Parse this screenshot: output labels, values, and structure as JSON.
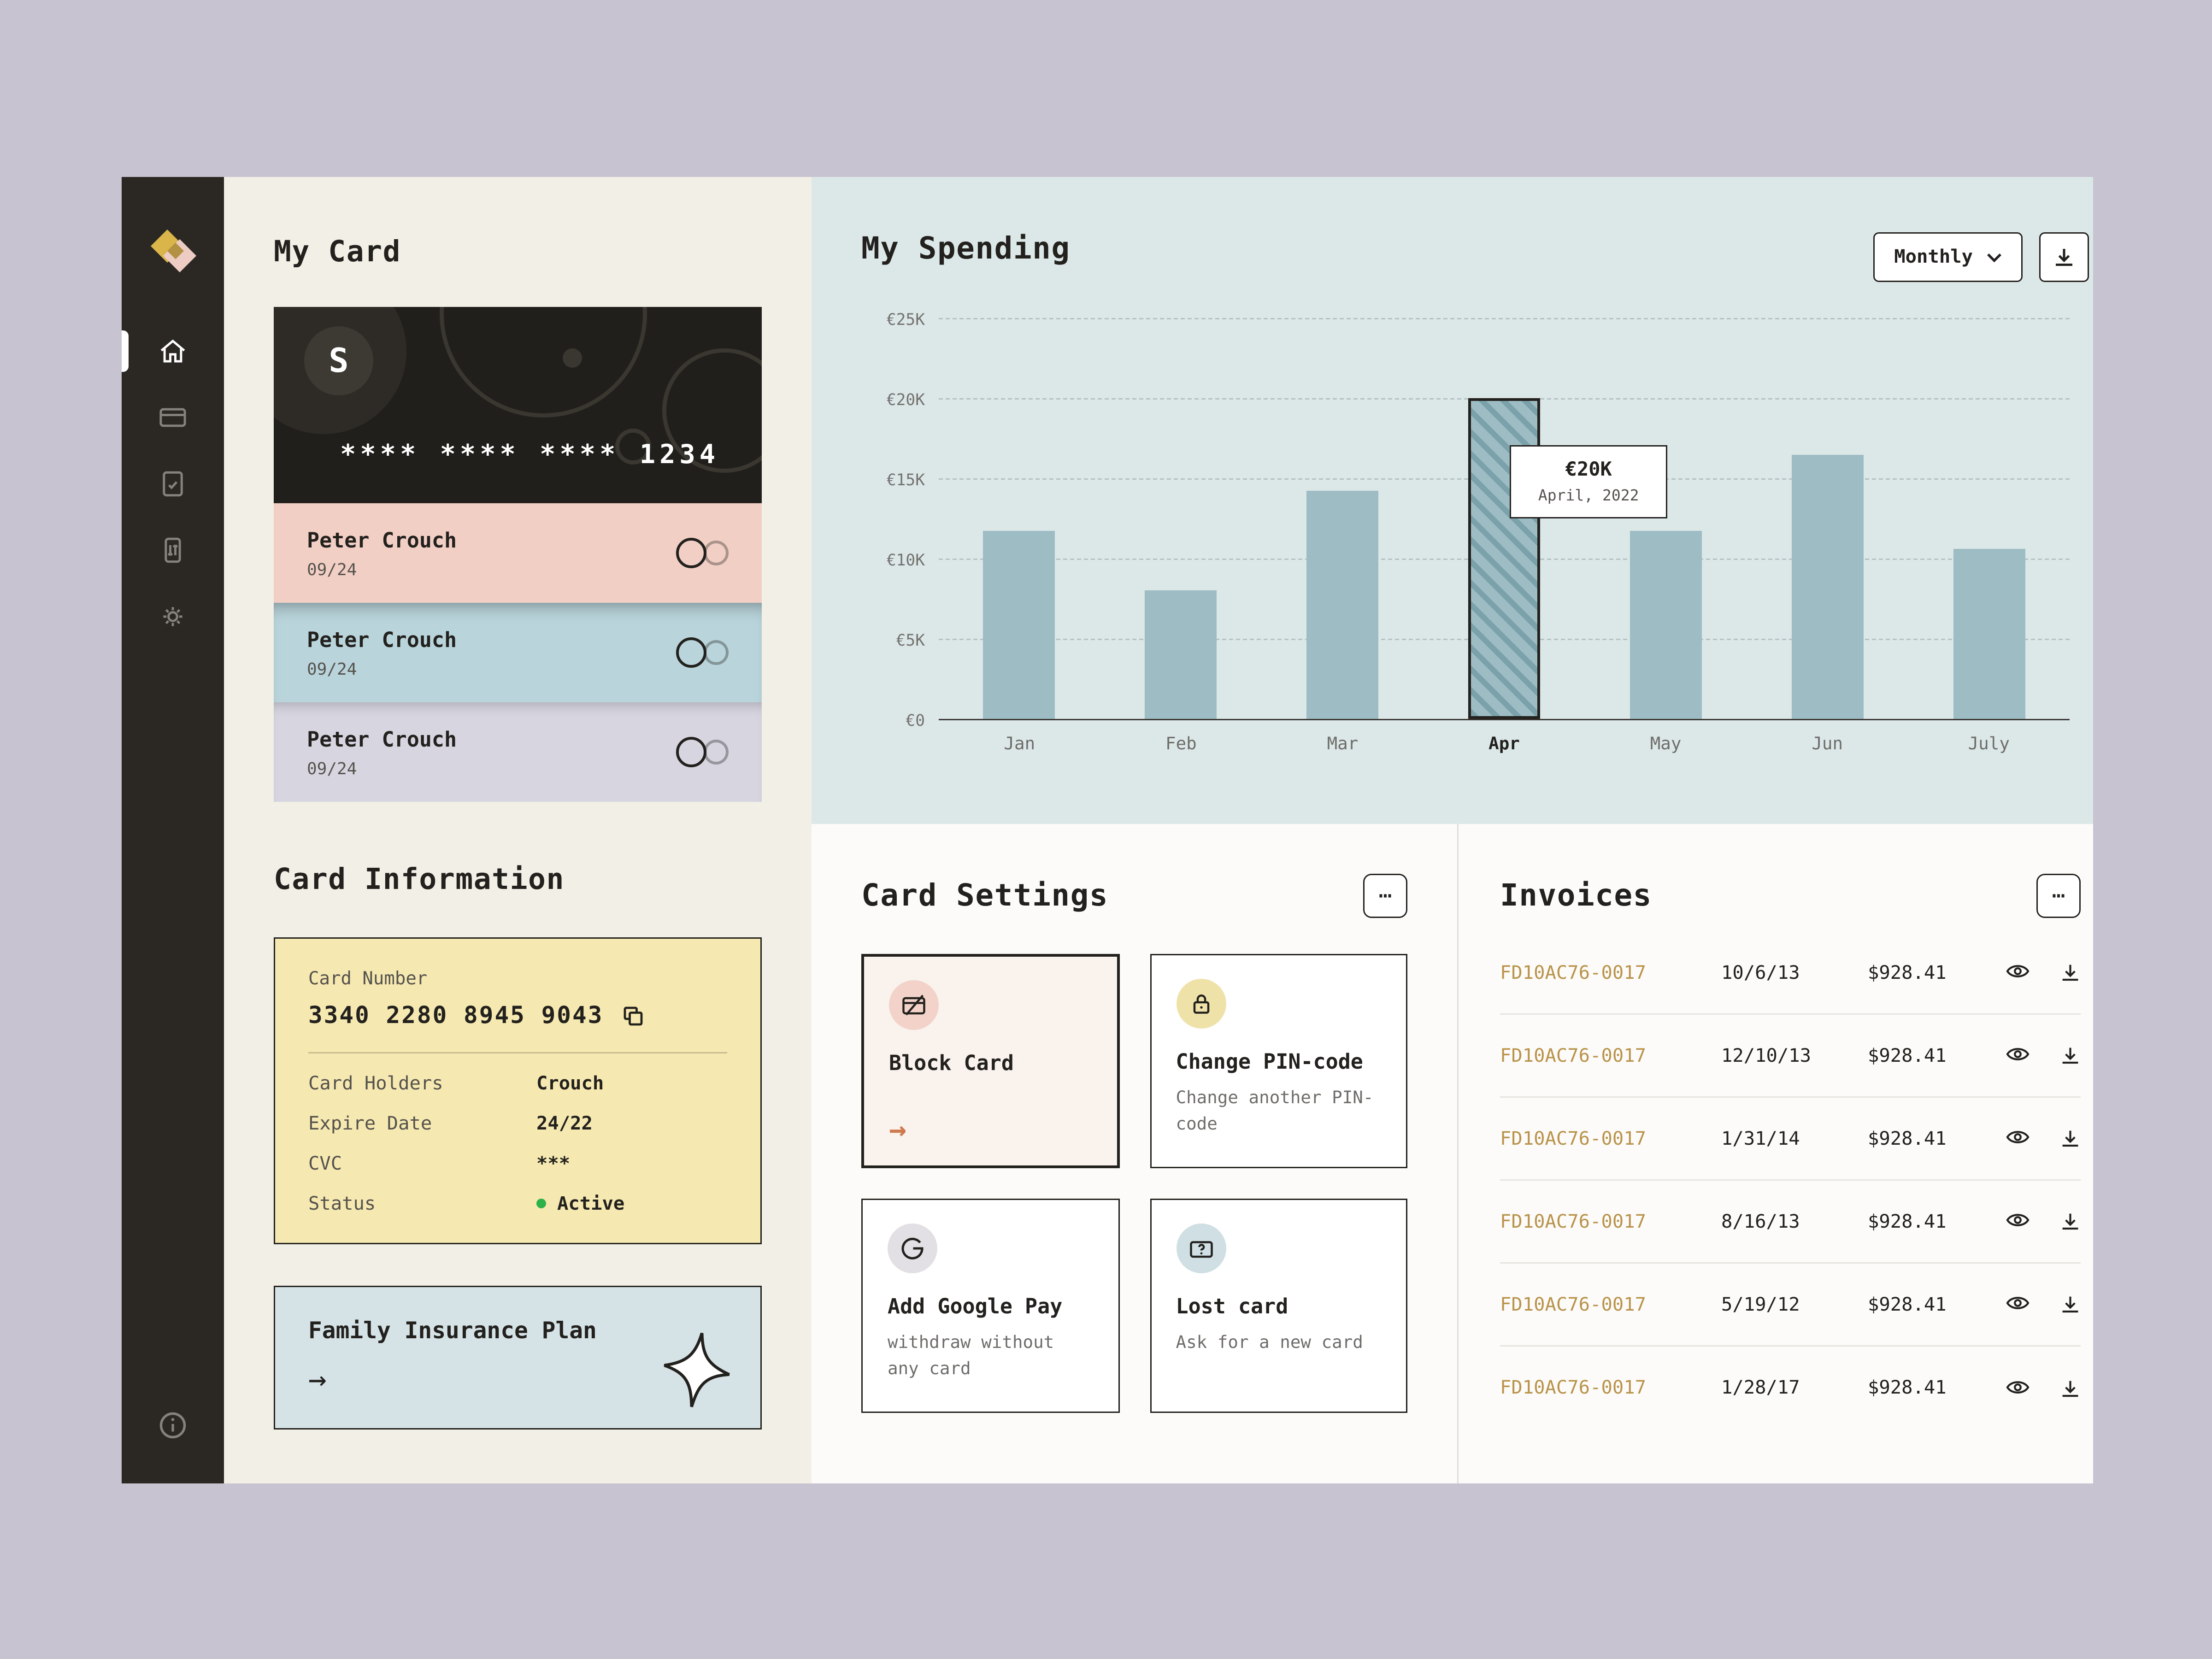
{
  "ui": {
    "ellipsis": "⋯",
    "arrow_right": "→"
  },
  "colors": {
    "accent_gold": "#b9934a",
    "bar": "#9dbcc3",
    "status_green": "#2db24a",
    "arrow_orange": "#cf7a4e",
    "sidebar_dark": "#2b2824",
    "panel_cream": "#f2efe6",
    "chart_bg": "#dce7e8"
  },
  "sidebar": {
    "items": [
      {
        "label": "home",
        "active": true
      },
      {
        "label": "cards",
        "active": false
      },
      {
        "label": "documents",
        "active": false
      },
      {
        "label": "transactions",
        "active": false
      },
      {
        "label": "settings",
        "active": false
      }
    ],
    "footer": "info"
  },
  "my_card": {
    "title": "My Card",
    "brand_letter": "S",
    "masked_number": "**** **** **** 1234",
    "holders": [
      {
        "name": "Peter Crouch",
        "expiry": "09/24"
      },
      {
        "name": "Peter Crouch",
        "expiry": "09/24"
      },
      {
        "name": "Peter Crouch",
        "expiry": "09/24"
      }
    ]
  },
  "card_information": {
    "title": "Card Information",
    "card_number_label": "Card Number",
    "card_number": "3340 2280 8945 9043",
    "fields": [
      {
        "label": "Card Holders",
        "value": "Crouch"
      },
      {
        "label": "Expire Date",
        "value": "24/22"
      },
      {
        "label": "CVC",
        "value": "***"
      },
      {
        "label": "Status",
        "value": "Active"
      }
    ],
    "insurance_title": "Family Insurance Plan"
  },
  "spending": {
    "title": "My Spending",
    "period": "Monthly"
  },
  "chart_data": {
    "type": "bar",
    "title": "My Spending",
    "categories": [
      "Jan",
      "Feb",
      "Mar",
      "Apr",
      "May",
      "Jun",
      "July"
    ],
    "values": [
      11.7,
      8,
      14.2,
      20,
      11.7,
      16.5,
      10.6
    ],
    "unit": "€K",
    "ylim": [
      0,
      25
    ],
    "yticks": [
      "€25K",
      "€20K",
      "€15K",
      "€10K",
      "€5K",
      "€0"
    ],
    "highlighted_index": 3,
    "tooltip": {
      "value": "€20K",
      "label": "April, 2022"
    },
    "grid": "dashed horizontal",
    "legend": "none"
  },
  "card_settings": {
    "title": "Card Settings",
    "items": [
      {
        "title": "Block Card",
        "subtitle": ""
      },
      {
        "title": "Change PIN-code",
        "subtitle": "Change another PIN-code"
      },
      {
        "title": "Add Google Pay",
        "subtitle": "withdraw without any card"
      },
      {
        "title": "Lost card",
        "subtitle": "Ask for a new card"
      }
    ]
  },
  "invoices": {
    "title": "Invoices",
    "rows": [
      {
        "id": "FD10AC76-0017",
        "date": "10/6/13",
        "amount": "$928.41"
      },
      {
        "id": "FD10AC76-0017",
        "date": "12/10/13",
        "amount": "$928.41"
      },
      {
        "id": "FD10AC76-0017",
        "date": "1/31/14",
        "amount": "$928.41"
      },
      {
        "id": "FD10AC76-0017",
        "date": "8/16/13",
        "amount": "$928.41"
      },
      {
        "id": "FD10AC76-0017",
        "date": "5/19/12",
        "amount": "$928.41"
      },
      {
        "id": "FD10AC76-0017",
        "date": "1/28/17",
        "amount": "$928.41"
      }
    ]
  }
}
